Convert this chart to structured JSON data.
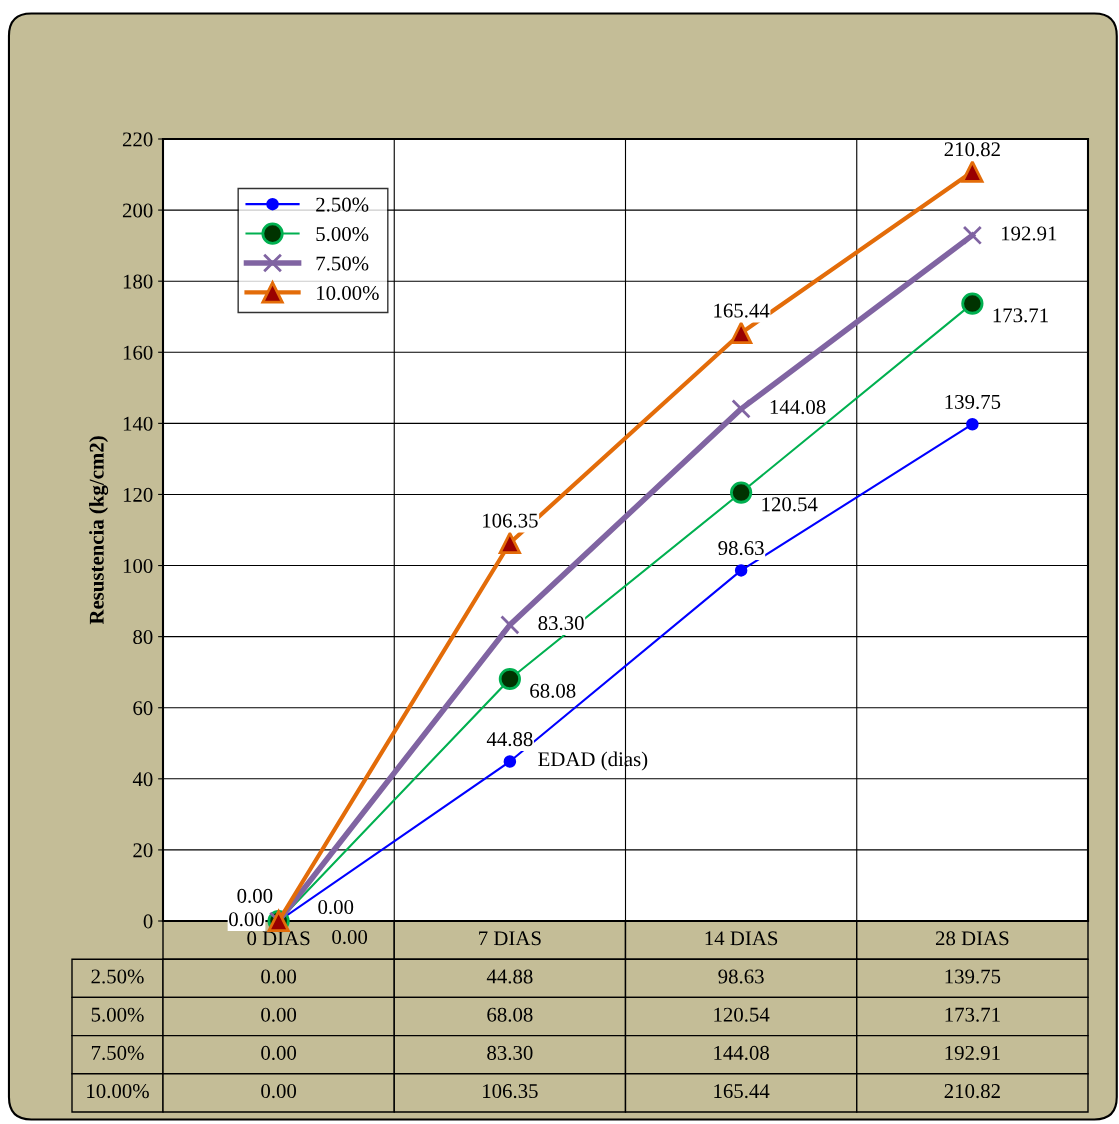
{
  "chart_data": {
    "type": "line",
    "xlabel": "EDAD (dias)",
    "ylabel": "Resustencia (kg/cm2)",
    "categories": [
      "0 DIAS",
      "7 DIAS",
      "14 DIAS",
      "28 DIAS"
    ],
    "series": [
      {
        "name": "2.50%",
        "color": "#0000ff",
        "marker": "circle",
        "values": [
          0.0,
          44.88,
          98.63,
          139.75
        ],
        "value_labels": [
          "0.00",
          "44.88",
          "98.63",
          "139.75"
        ]
      },
      {
        "name": "5.00%",
        "color": "#00b050",
        "marker": "circle",
        "values": [
          0.0,
          68.08,
          120.54,
          173.71
        ],
        "value_labels": [
          "0.00",
          "68.08",
          "120.54",
          "173.71"
        ]
      },
      {
        "name": "7.50%",
        "color": "#8064a2",
        "marker": "cross",
        "values": [
          0.0,
          83.3,
          144.08,
          192.91
        ],
        "value_labels": [
          "0.00",
          "83.30",
          "144.08",
          "192.91"
        ]
      },
      {
        "name": "10.00%",
        "color": "#e36c09",
        "marker": "triangle",
        "values": [
          0.0,
          106.35,
          165.44,
          210.82
        ],
        "value_labels": [
          "0.00",
          "106.35",
          "165.44",
          "210.82"
        ]
      }
    ],
    "ylim": [
      0,
      220
    ],
    "yticks": [
      0,
      20,
      40,
      60,
      80,
      100,
      120,
      140,
      160,
      180,
      200,
      220
    ],
    "grid": true,
    "legend": "top left",
    "data_labels": true
  }
}
